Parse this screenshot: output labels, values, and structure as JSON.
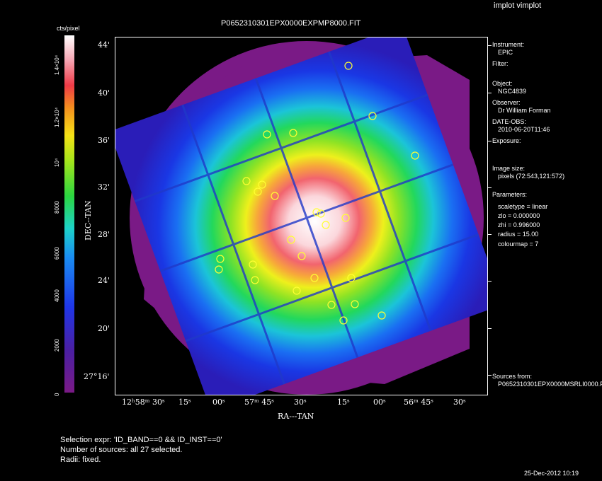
{
  "app_title": "implot vimplot",
  "plot_title": "P0652310301EPX0000EXPMP8000.FIT",
  "colorbar": {
    "unit_label": "cts/pixel",
    "ticks": [
      "0",
      "2000",
      "4000",
      "6000",
      "8000",
      "10⁴",
      "1.2×10⁴",
      "1.4×10⁴"
    ]
  },
  "axes": {
    "ylabel": "DEC--TAN",
    "xlabel": "RA---TAN",
    "yticks": [
      "44'",
      "40'",
      "36'",
      "32'",
      "28'",
      "24'",
      "20'",
      "27°16'"
    ],
    "xticks": [
      "12ʰ58ᵐ 30ˢ",
      "15ˢ",
      "00ˢ",
      "57ᵐ 45ˢ",
      "30ˢ",
      "15ˢ",
      "00ˢ",
      "56ᵐ 45ˢ",
      "30ˢ"
    ]
  },
  "info": {
    "instrument_label": "Instrument:",
    "instrument_value": "EPIC",
    "filter_label": "Filter:",
    "object_label": "Object:",
    "object_value": "NGC4839",
    "observer_label": "Observer:",
    "observer_value": "Dr William Forman",
    "date_label": "DATE-OBS:",
    "date_value": "2010-06-20T11:46",
    "exposure_label": "Exposure:",
    "image_size_label": "Image size:",
    "image_size_value": "pixels (72:543,121:572)",
    "parameters_label": "Parameters:",
    "param_scaletype": "scaletype = linear",
    "param_zlo": "zlo = 0.000000",
    "param_zhi": "zhi = 0.996000",
    "param_radius": "radius = 15.00",
    "param_colourmap": "colourmap = 7",
    "sources_label": "Sources from:",
    "sources_value": "P0652310301EPX0000MSRLI0000.F"
  },
  "footer": {
    "selection": "Selection expr: 'ID_BAND==0 && ID_INST==0'",
    "number": "Number of sources: all 27 selected.",
    "radii": "Radii: fixed.",
    "timestamp": "25-Dec-2012 10:19"
  },
  "colors": {
    "background": "#000000",
    "foreground": "#ffffff",
    "source_circle": "#ffff33",
    "outer_halo": "#7a1a86"
  }
}
